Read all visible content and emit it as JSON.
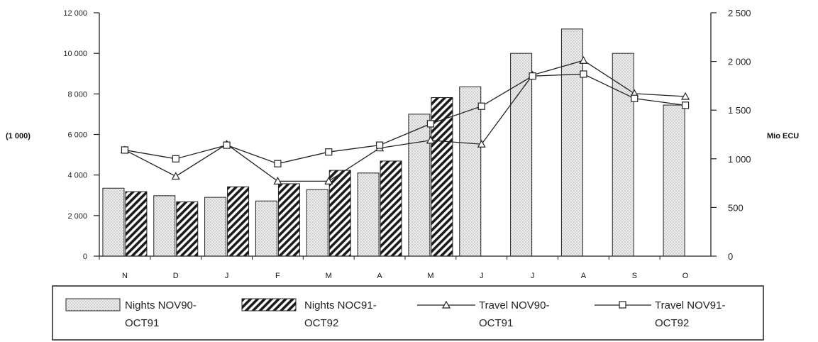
{
  "chart_data": {
    "type": "bar",
    "title": "",
    "xlabel": "",
    "categories": [
      "N",
      "D",
      "J",
      "F",
      "M",
      "A",
      "M",
      "J",
      "J",
      "A",
      "S",
      "O"
    ],
    "y_left": {
      "label": "(1 000)",
      "ylim": [
        0,
        12000
      ],
      "ticks": [
        0,
        2000,
        4000,
        6000,
        8000,
        10000,
        12000
      ],
      "tick_labels": [
        "0",
        "2 000",
        "4 000",
        "6 000",
        "8 000",
        "10 000",
        "12 000"
      ]
    },
    "y_right": {
      "label": "Mio ECU",
      "ylim": [
        0,
        2500
      ],
      "ticks": [
        0,
        500,
        1000,
        1500,
        2000,
        2500
      ],
      "tick_labels": [
        "0",
        "500",
        "1 000",
        "1 500",
        "2 000",
        "2 500"
      ]
    },
    "grid": false,
    "legend_position": "bottom",
    "series": [
      {
        "name_lines": [
          "Nights NOV90-",
          "OCT91"
        ],
        "type": "bar",
        "axis": "left",
        "pattern": "dotted",
        "values": [
          3350,
          2980,
          2900,
          2720,
          3280,
          4100,
          7000,
          8350,
          10000,
          11200,
          10000,
          7450
        ]
      },
      {
        "name_lines": [
          "Nights NOC91-",
          "OCT92"
        ],
        "type": "bar",
        "axis": "left",
        "pattern": "hatched",
        "values": [
          3180,
          2680,
          3420,
          3570,
          4230,
          4690,
          7820,
          null,
          null,
          null,
          null,
          null
        ]
      },
      {
        "name_lines": [
          "Travel NOV90-",
          "OCT91"
        ],
        "type": "line",
        "axis": "right",
        "marker": "triangle",
        "values": [
          1090,
          820,
          1150,
          770,
          770,
          1110,
          1190,
          1150,
          1860,
          2010,
          1670,
          1640
        ]
      },
      {
        "name_lines": [
          "Travel NOV91-",
          "OCT92"
        ],
        "type": "line",
        "axis": "right",
        "marker": "square",
        "values": [
          1090,
          1000,
          1140,
          950,
          1070,
          1140,
          1360,
          1540,
          1850,
          1870,
          1620,
          1550
        ]
      }
    ],
    "colors": {
      "ink": "#222222",
      "bar_fill": "#ececec",
      "background": "#ffffff"
    }
  }
}
